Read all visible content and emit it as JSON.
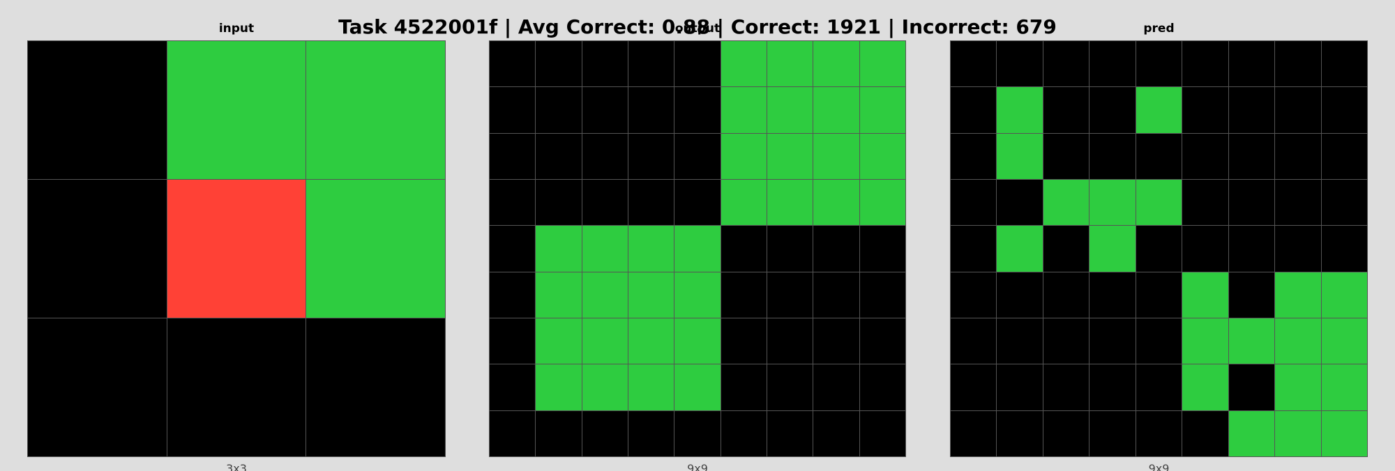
{
  "header": {
    "title": "Task 4522001f | Avg Correct: 0.88 | Correct: 1921 | Incorrect: 679"
  },
  "colors": {
    "0": "#000000",
    "2": "#ff4136",
    "3": "#2ecc40"
  },
  "panels": [
    {
      "title": "input",
      "dims": "3x3",
      "grid": [
        [
          0,
          3,
          3
        ],
        [
          0,
          2,
          3
        ],
        [
          0,
          0,
          0
        ]
      ]
    },
    {
      "title": "output",
      "dims": "9x9",
      "grid": [
        [
          0,
          0,
          0,
          0,
          0,
          3,
          3,
          3,
          3
        ],
        [
          0,
          0,
          0,
          0,
          0,
          3,
          3,
          3,
          3
        ],
        [
          0,
          0,
          0,
          0,
          0,
          3,
          3,
          3,
          3
        ],
        [
          0,
          0,
          0,
          0,
          0,
          3,
          3,
          3,
          3
        ],
        [
          0,
          3,
          3,
          3,
          3,
          0,
          0,
          0,
          0
        ],
        [
          0,
          3,
          3,
          3,
          3,
          0,
          0,
          0,
          0
        ],
        [
          0,
          3,
          3,
          3,
          3,
          0,
          0,
          0,
          0
        ],
        [
          0,
          3,
          3,
          3,
          3,
          0,
          0,
          0,
          0
        ],
        [
          0,
          0,
          0,
          0,
          0,
          0,
          0,
          0,
          0
        ]
      ]
    },
    {
      "title": "pred",
      "dims": "9x9",
      "grid": [
        [
          0,
          0,
          0,
          0,
          0,
          0,
          0,
          0,
          0
        ],
        [
          0,
          3,
          0,
          0,
          3,
          0,
          0,
          0,
          0
        ],
        [
          0,
          3,
          0,
          0,
          0,
          0,
          0,
          0,
          0
        ],
        [
          0,
          0,
          3,
          3,
          3,
          0,
          0,
          0,
          0
        ],
        [
          0,
          3,
          0,
          3,
          0,
          0,
          0,
          0,
          0
        ],
        [
          0,
          0,
          0,
          0,
          0,
          3,
          0,
          3,
          3
        ],
        [
          0,
          0,
          0,
          0,
          0,
          3,
          3,
          3,
          3
        ],
        [
          0,
          0,
          0,
          0,
          0,
          3,
          0,
          3,
          3
        ],
        [
          0,
          0,
          0,
          0,
          0,
          0,
          3,
          3,
          3
        ]
      ]
    }
  ]
}
